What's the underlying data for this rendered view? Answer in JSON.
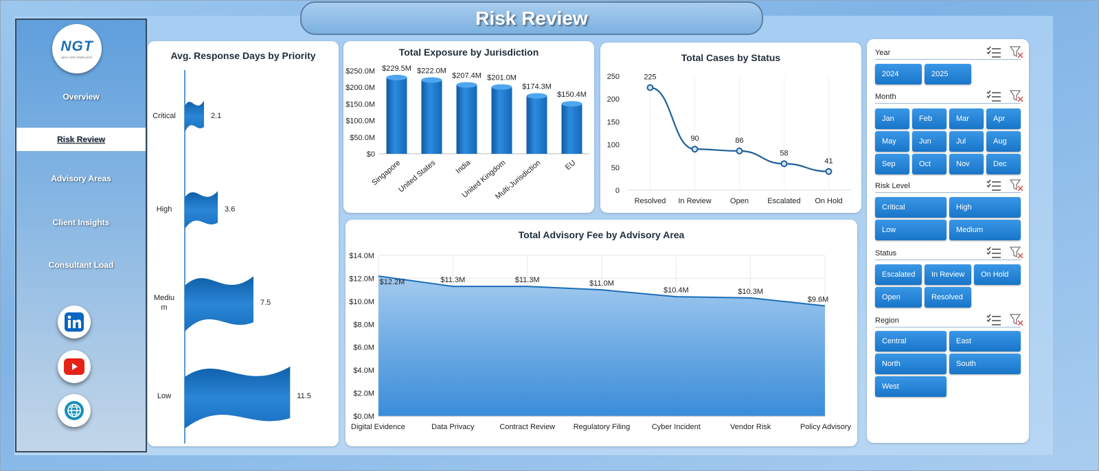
{
  "title": "Risk Review",
  "logo": {
    "text": "NGT",
    "subtext": "NEXT GEN TEMPLATES"
  },
  "nav": [
    {
      "label": "Overview",
      "active": false
    },
    {
      "label": "Risk Review",
      "active": true
    },
    {
      "label": "Advisory Areas",
      "active": false
    },
    {
      "label": "Client Insights",
      "active": false
    },
    {
      "label": "Consultant Load",
      "active": false
    }
  ],
  "social_icons": [
    "linkedin-icon",
    "youtube-icon",
    "globe-icon"
  ],
  "colors": {
    "accent": "#1a7ad0",
    "bar": "#1876c8",
    "line": "#2a74b8",
    "nav_bg": "#6aa7df"
  },
  "chart_data": [
    {
      "id": "avg-response",
      "type": "bar",
      "title": "Avg. Response  Days by Priority",
      "categories": [
        "Critical",
        "High",
        "Medium",
        "Low"
      ],
      "category_display": [
        "Critical",
        "High",
        "Mediu\nm",
        "Low"
      ],
      "values": [
        2.1,
        3.6,
        7.5,
        11.5
      ],
      "labels": [
        "2.1",
        "3.6",
        "7.5",
        "11.5"
      ],
      "orientation": "horizontal"
    },
    {
      "id": "exposure",
      "type": "bar",
      "title": "Total Exposure  by Jurisdiction",
      "categories": [
        "Singapore",
        "United States",
        "India",
        "United Kingdom",
        "Multi-Jurisdiction",
        "EU"
      ],
      "values": [
        229.5,
        222.0,
        207.4,
        201.0,
        174.3,
        150.4
      ],
      "labels": [
        "$229.5M",
        "$222.0M",
        "$207.4M",
        "$201.0M",
        "$174.3M",
        "$150.4M"
      ],
      "yticks": [
        "$0",
        "$50.0M",
        "$100.0M",
        "$150.0M",
        "$200.0M",
        "$250.0M"
      ],
      "ylim": [
        0,
        250
      ]
    },
    {
      "id": "cases",
      "type": "line",
      "title": "Total Cases by Status",
      "categories": [
        "Resolved",
        "In Review",
        "Open",
        "Escalated",
        "On Hold"
      ],
      "values": [
        225,
        90,
        86,
        58,
        41
      ],
      "yticks": [
        "0",
        "50",
        "100",
        "150",
        "200",
        "250"
      ],
      "ylim": [
        0,
        250
      ]
    },
    {
      "id": "fee",
      "type": "area",
      "title": "Total Advisory Fee by Advisory Area",
      "categories": [
        "Digital Evidence",
        "Data Privacy",
        "Contract Review",
        "Regulatory Filing",
        "Cyber Incident",
        "Vendor Risk",
        "Policy Advisory"
      ],
      "values": [
        12.2,
        11.3,
        11.3,
        11.0,
        10.4,
        10.3,
        9.6
      ],
      "labels": [
        "$12.2M",
        "$11.3M",
        "$11.3M",
        "$11.0M",
        "$10.4M",
        "$10.3M",
        "$9.6M"
      ],
      "yticks": [
        "$0.0M",
        "$2.0M",
        "$4.0M",
        "$6.0M",
        "$8.0M",
        "$10.0M",
        "$12.0M",
        "$14.0M"
      ],
      "ylim": [
        0,
        14
      ]
    }
  ],
  "slicers": [
    {
      "label": "Year",
      "items": [
        "2024",
        "2025"
      ]
    },
    {
      "label": "Month",
      "items": [
        "Jan",
        "Feb",
        "Mar",
        "Apr",
        "May",
        "Jun",
        "Jul",
        "Aug",
        "Sep",
        "Oct",
        "Nov",
        "Dec"
      ]
    },
    {
      "label": "Risk Level",
      "items": [
        "Critical",
        "High",
        "Low",
        "Medium"
      ]
    },
    {
      "label": "Status",
      "items": [
        "Escalated",
        "In Review",
        "On Hold",
        "Open",
        "Resolved"
      ]
    },
    {
      "label": "Region",
      "items": [
        "Central",
        "East",
        "North",
        "South",
        "West"
      ]
    }
  ]
}
